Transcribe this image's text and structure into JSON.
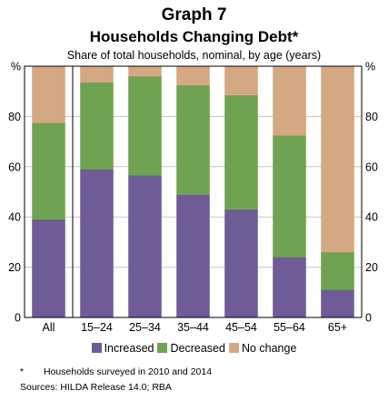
{
  "chart_data": {
    "type": "bar",
    "stacked": true,
    "title": "Graph 7",
    "subtitle": "Households Changing Debt*",
    "units_label": "Share of total households, nominal, by age (years)",
    "ylabel_left": "%",
    "ylabel_right": "%",
    "ylim": [
      0,
      100
    ],
    "yticks": [
      0,
      20,
      40,
      60,
      80
    ],
    "categories": [
      "All",
      "15–24",
      "25–34",
      "35–44",
      "45–54",
      "55–64",
      "65+"
    ],
    "separator_after": "All",
    "series": [
      {
        "name": "Increased",
        "color": "#6f5b96",
        "values": [
          39,
          59,
          56.5,
          49,
          43,
          24,
          11
        ]
      },
      {
        "name": "Decreased",
        "color": "#70a351",
        "values": [
          38.5,
          34.5,
          39.5,
          43.5,
          45.5,
          48.5,
          15
        ]
      },
      {
        "name": "No change",
        "color": "#d4a882",
        "values": [
          22.5,
          6.5,
          4,
          7.5,
          11.5,
          27.5,
          74
        ]
      }
    ],
    "legend_position": "bottom"
  },
  "footnote": {
    "mark": "*",
    "text": "Households surveyed in 2010 and 2014"
  },
  "sources": "Sources:  HILDA Release 14.0; RBA"
}
